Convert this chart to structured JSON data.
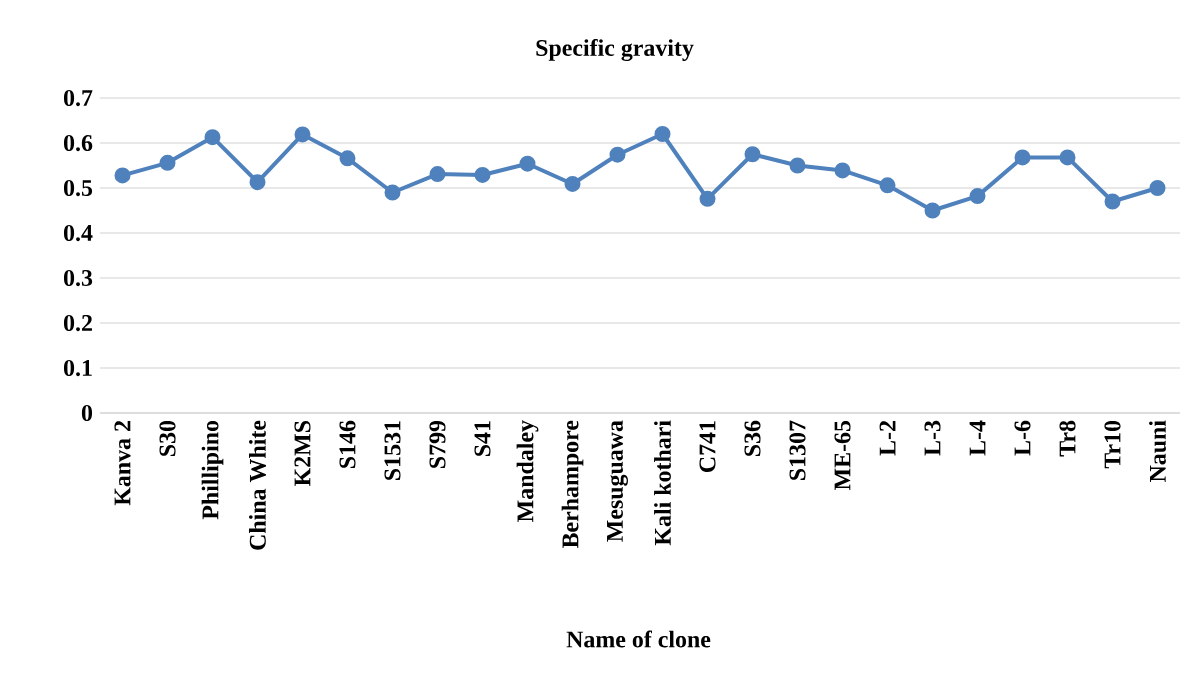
{
  "chart_data": {
    "type": "line",
    "title": "Specific gravity",
    "xlabel": "Name of  clone",
    "categories": [
      "Kanva 2",
      "S30",
      "Phillipino",
      "China White",
      "K2MS",
      "S146",
      "S1531",
      "S799",
      "S41",
      "Mandaley",
      "Berhampore",
      "Mesuguawa",
      "Kali kothari",
      "C741",
      "S36",
      "S1307",
      "ME-65",
      "L-2",
      "L-3",
      "L-4",
      "L-6",
      "Tr8",
      "Tr10",
      "Nauni"
    ],
    "series": [
      {
        "color": "#4f81bd",
        "values": [
          0.528,
          0.556,
          0.613,
          0.513,
          0.619,
          0.566,
          0.49,
          0.531,
          0.529,
          0.554,
          0.509,
          0.574,
          0.62,
          0.476,
          0.575,
          0.55,
          0.539,
          0.506,
          0.45,
          0.482,
          0.568,
          0.568,
          0.47,
          0.5
        ]
      }
    ],
    "ylim": [
      0,
      0.7
    ],
    "yticks": [
      0,
      0.1,
      0.2,
      0.3,
      0.4,
      0.5,
      0.6,
      0.7
    ],
    "grid": "y",
    "marker": "circle",
    "line_style": "solid"
  }
}
